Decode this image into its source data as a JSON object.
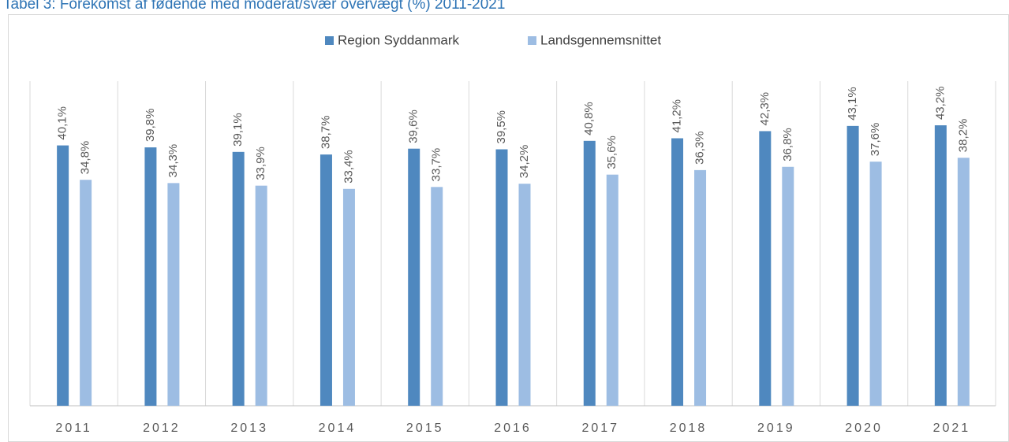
{
  "chart_data": {
    "type": "bar",
    "title": "Tabel 3: Forekomst af fødende med moderat/svær overvægt (%) 2011-2021",
    "categories": [
      "2011",
      "2012",
      "2013",
      "2014",
      "2015",
      "2016",
      "2017",
      "2018",
      "2019",
      "2020",
      "2021"
    ],
    "series": [
      {
        "name": "Region Syddanmark",
        "color": "#4f88bf",
        "values": [
          40.1,
          39.8,
          39.1,
          38.7,
          39.6,
          39.5,
          40.8,
          41.2,
          42.3,
          43.1,
          43.2
        ],
        "value_labels": [
          "40,1%",
          "39,8%",
          "39,1%",
          "38,7%",
          "39,6%",
          "39,5%",
          "40,8%",
          "41,2%",
          "42,3%",
          "43,1%",
          "43,2%"
        ]
      },
      {
        "name": "Landsgennemsnittet",
        "color": "#9dbde3",
        "values": [
          34.8,
          34.3,
          33.9,
          33.4,
          33.7,
          34.2,
          35.6,
          36.3,
          36.8,
          37.6,
          38.2
        ],
        "value_labels": [
          "34,8%",
          "34,3%",
          "33,9%",
          "33,4%",
          "33,7%",
          "34,2%",
          "35,6%",
          "36,3%",
          "36,8%",
          "37,6%",
          "38,2%"
        ]
      }
    ],
    "ylim": [
      0,
      50
    ],
    "legend": "top"
  }
}
